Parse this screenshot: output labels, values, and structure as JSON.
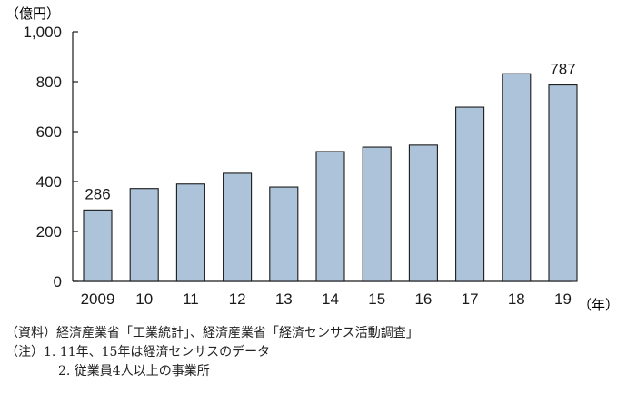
{
  "chart_data": {
    "type": "bar",
    "unit_label": "（億円）",
    "year_label": "（年）",
    "categories": [
      "2009",
      "10",
      "11",
      "12",
      "13",
      "14",
      "15",
      "16",
      "17",
      "18",
      "19"
    ],
    "values": [
      286,
      372,
      390,
      433,
      378,
      520,
      538,
      546,
      698,
      832,
      787
    ],
    "data_labels": [
      {
        "index": 0,
        "text": "286"
      },
      {
        "index": 10,
        "text": "787"
      }
    ],
    "ylim": [
      0,
      1000
    ],
    "yticks": [
      0,
      200,
      400,
      600,
      800,
      1000
    ],
    "ytick_labels": [
      "0",
      "200",
      "400",
      "600",
      "800",
      "1,000"
    ],
    "bar_color": "#adc3da",
    "bar_edge_color": "#1a1a1a",
    "grid": false
  },
  "notes": {
    "source": "（資料）経済産業省「工業統計」、経済産業省「経済センサス活動調査」",
    "note1": "（注）1. 11年、15年は経済センサスのデータ",
    "note2": "2. 従業員4人以上の事業所"
  }
}
